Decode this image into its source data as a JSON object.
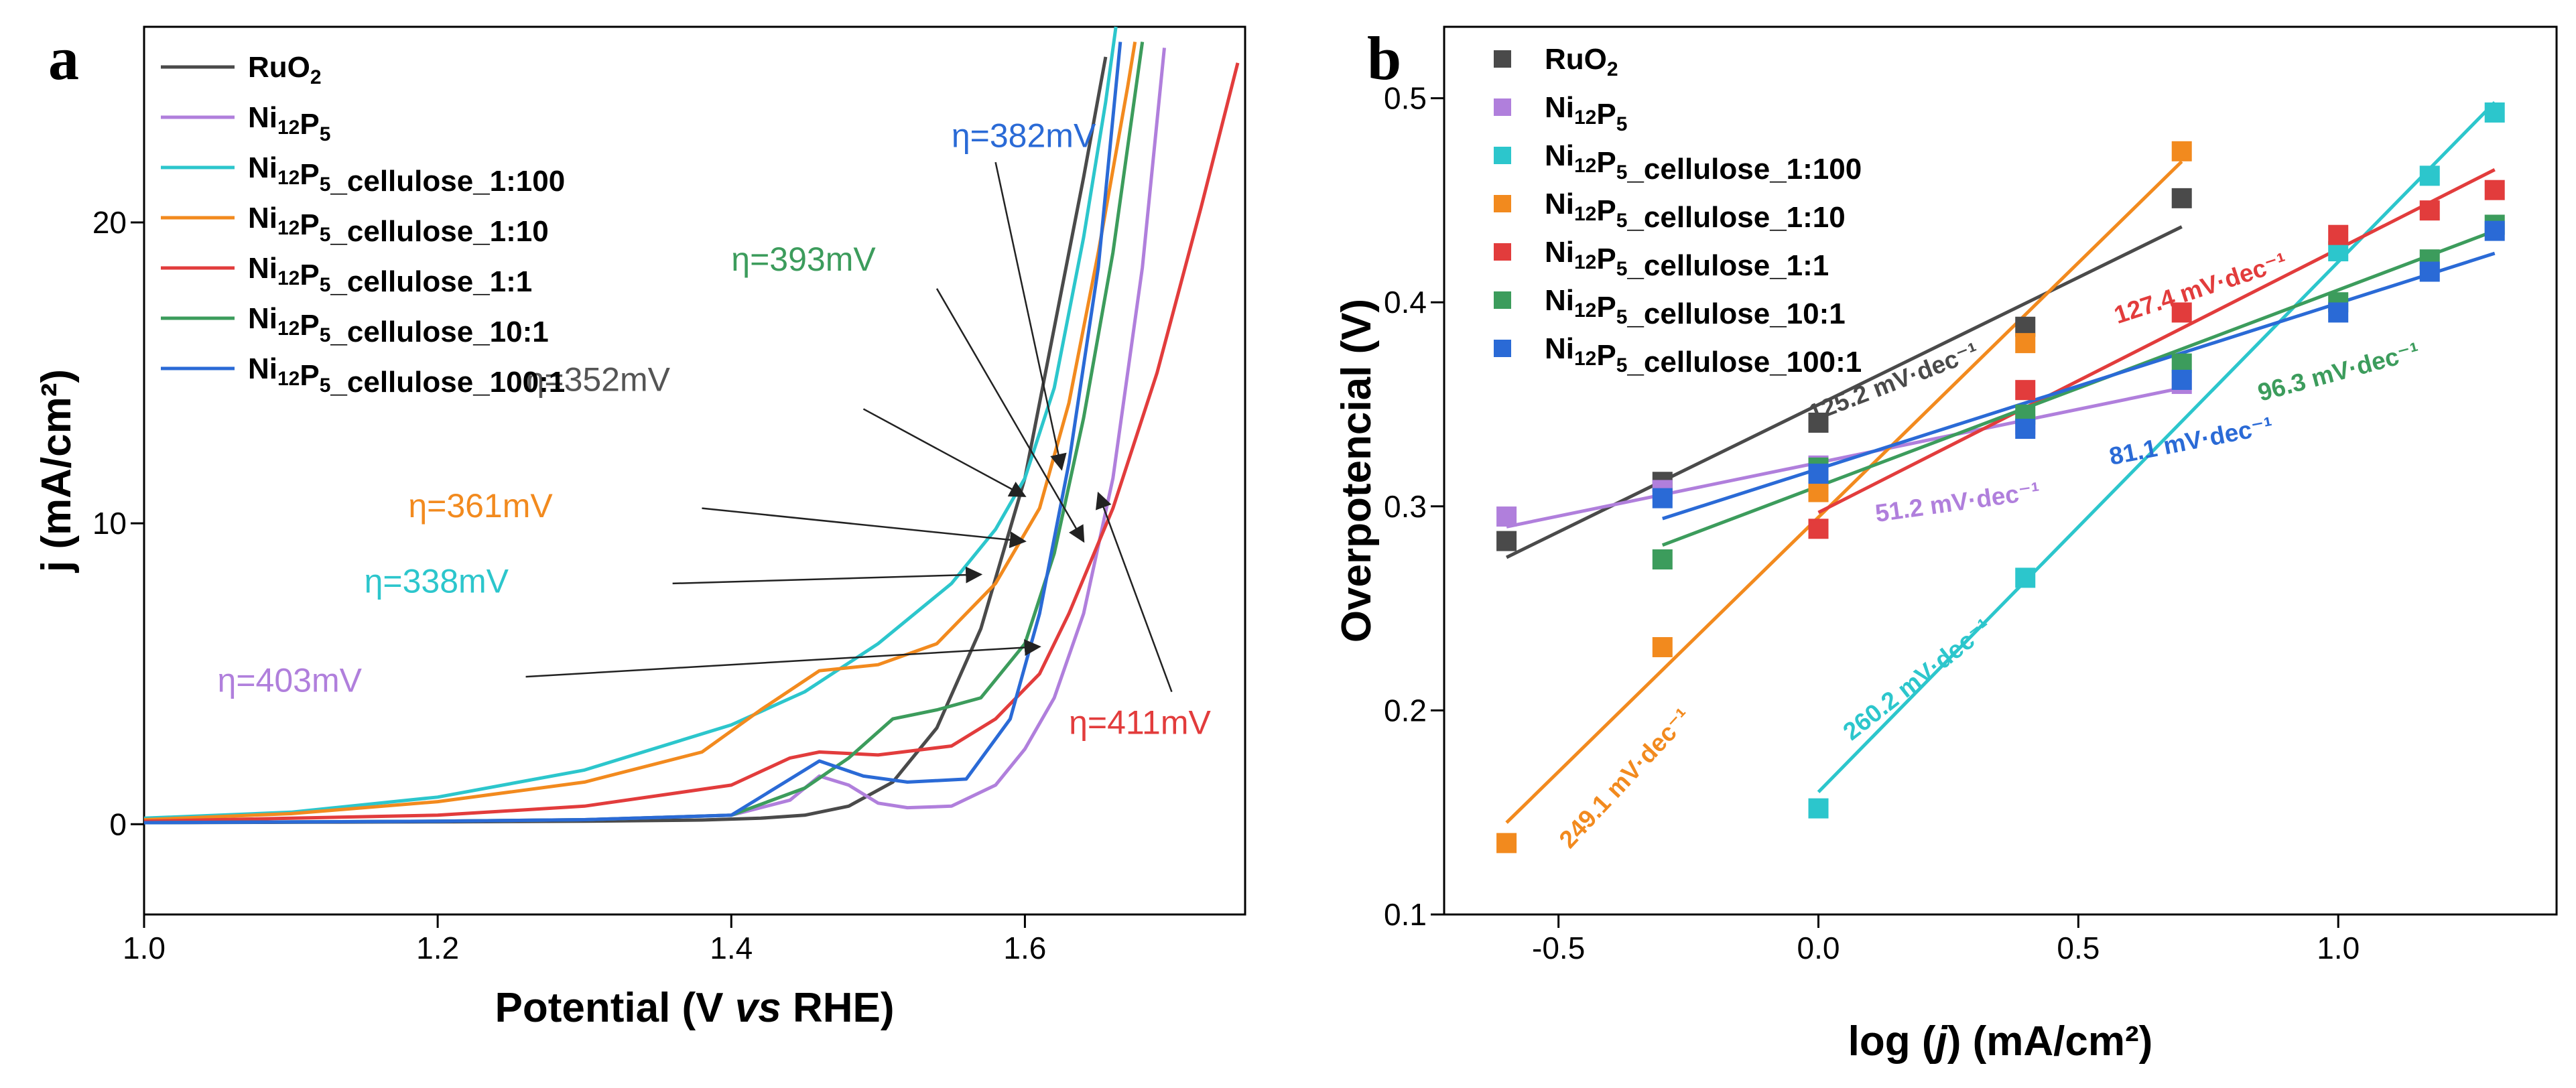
{
  "figure": {
    "panel_a_label": "a",
    "panel_b_label": "b"
  },
  "chart_data": [
    {
      "type": "line",
      "panel": "a",
      "xlabel_parts": [
        "Potential (V ",
        "vs",
        " RHE)"
      ],
      "ylabel": "j (mA/cm²)",
      "xlim": [
        1.0,
        1.75
      ],
      "ylim": [
        -3,
        26.5
      ],
      "xticks": [
        1.0,
        1.2,
        1.4,
        1.6
      ],
      "yticks": [
        0,
        10,
        20
      ],
      "legend_position": "top-left",
      "series": [
        {
          "name": "RuO₂",
          "color": "#4a4a4a",
          "points": [
            [
              1.0,
              0.05
            ],
            [
              1.2,
              0.08
            ],
            [
              1.3,
              0.1
            ],
            [
              1.38,
              0.14
            ],
            [
              1.42,
              0.2
            ],
            [
              1.45,
              0.3
            ],
            [
              1.48,
              0.6
            ],
            [
              1.51,
              1.4
            ],
            [
              1.54,
              3.2
            ],
            [
              1.57,
              6.5
            ],
            [
              1.6,
              11.5
            ],
            [
              1.62,
              16.5
            ],
            [
              1.64,
              21.5
            ],
            [
              1.655,
              25.5
            ]
          ]
        },
        {
          "name": "Ni₁₂P₅",
          "color": "#b07fdc",
          "points": [
            [
              1.0,
              0.05
            ],
            [
              1.2,
              0.1
            ],
            [
              1.3,
              0.15
            ],
            [
              1.4,
              0.3
            ],
            [
              1.44,
              0.8
            ],
            [
              1.46,
              1.6
            ],
            [
              1.48,
              1.3
            ],
            [
              1.5,
              0.7
            ],
            [
              1.52,
              0.55
            ],
            [
              1.55,
              0.6
            ],
            [
              1.58,
              1.3
            ],
            [
              1.6,
              2.5
            ],
            [
              1.62,
              4.2
            ],
            [
              1.64,
              7.0
            ],
            [
              1.66,
              11.5
            ],
            [
              1.68,
              18.5
            ],
            [
              1.695,
              25.8
            ]
          ]
        },
        {
          "name": "Ni₁₂P₅_cellulose_1:100",
          "color": "#2cc6cc",
          "points": [
            [
              1.0,
              0.2
            ],
            [
              1.1,
              0.4
            ],
            [
              1.2,
              0.9
            ],
            [
              1.3,
              1.8
            ],
            [
              1.4,
              3.3
            ],
            [
              1.45,
              4.4
            ],
            [
              1.5,
              6.0
            ],
            [
              1.55,
              8.0
            ],
            [
              1.58,
              9.8
            ],
            [
              1.6,
              11.5
            ],
            [
              1.62,
              14.5
            ],
            [
              1.64,
              19.5
            ],
            [
              1.655,
              24.0
            ],
            [
              1.662,
              26.5
            ]
          ]
        },
        {
          "name": "Ni₁₂P₅_cellulose_1:10",
          "color": "#f28a1e",
          "points": [
            [
              1.0,
              0.15
            ],
            [
              1.1,
              0.35
            ],
            [
              1.2,
              0.75
            ],
            [
              1.3,
              1.4
            ],
            [
              1.38,
              2.4
            ],
            [
              1.42,
              3.8
            ],
            [
              1.46,
              5.1
            ],
            [
              1.5,
              5.3
            ],
            [
              1.54,
              6.0
            ],
            [
              1.58,
              8.0
            ],
            [
              1.61,
              10.5
            ],
            [
              1.63,
              14.0
            ],
            [
              1.65,
              19.0
            ],
            [
              1.67,
              24.5
            ],
            [
              1.675,
              26.0
            ]
          ]
        },
        {
          "name": "Ni₁₂P₅_cellulose_1:1",
          "color": "#e23c3c",
          "points": [
            [
              1.0,
              0.1
            ],
            [
              1.2,
              0.3
            ],
            [
              1.3,
              0.6
            ],
            [
              1.4,
              1.3
            ],
            [
              1.44,
              2.2
            ],
            [
              1.46,
              2.4
            ],
            [
              1.5,
              2.3
            ],
            [
              1.55,
              2.6
            ],
            [
              1.58,
              3.5
            ],
            [
              1.61,
              5.0
            ],
            [
              1.63,
              7.0
            ],
            [
              1.66,
              10.5
            ],
            [
              1.69,
              15.0
            ],
            [
              1.72,
              20.5
            ],
            [
              1.745,
              25.3
            ]
          ]
        },
        {
          "name": "Ni₁₂P₅_cellulose_10:1",
          "color": "#3c9c5c",
          "points": [
            [
              1.0,
              0.05
            ],
            [
              1.2,
              0.1
            ],
            [
              1.3,
              0.15
            ],
            [
              1.4,
              0.3
            ],
            [
              1.45,
              1.2
            ],
            [
              1.48,
              2.2
            ],
            [
              1.51,
              3.5
            ],
            [
              1.54,
              3.8
            ],
            [
              1.57,
              4.2
            ],
            [
              1.6,
              6.0
            ],
            [
              1.62,
              9.0
            ],
            [
              1.64,
              13.5
            ],
            [
              1.66,
              19.0
            ],
            [
              1.68,
              26.0
            ]
          ]
        },
        {
          "name": "Ni₁₂P₅_cellulose_100:1",
          "color": "#2a6ad6",
          "points": [
            [
              1.0,
              0.05
            ],
            [
              1.2,
              0.1
            ],
            [
              1.3,
              0.15
            ],
            [
              1.4,
              0.3
            ],
            [
              1.44,
              1.5
            ],
            [
              1.46,
              2.1
            ],
            [
              1.49,
              1.6
            ],
            [
              1.52,
              1.4
            ],
            [
              1.56,
              1.5
            ],
            [
              1.59,
              3.5
            ],
            [
              1.61,
              7.0
            ],
            [
              1.63,
              12.0
            ],
            [
              1.65,
              18.5
            ],
            [
              1.665,
              26.0
            ]
          ]
        }
      ],
      "annotations": [
        {
          "text": "η=382mV",
          "color": "#2a6ad6",
          "at": [
            1.55,
            22.5
          ],
          "arrow_from": [
            1.58,
            22.0
          ],
          "arrow_to": [
            1.625,
            11.8
          ]
        },
        {
          "text": "η=393mV",
          "color": "#3c9c5c",
          "at": [
            1.4,
            18.4
          ],
          "arrow_from": [
            1.54,
            17.8
          ],
          "arrow_to": [
            1.64,
            9.4
          ]
        },
        {
          "text": "η=352mV",
          "color": "#555555",
          "at": [
            1.26,
            14.4
          ],
          "arrow_from": [
            1.49,
            13.8
          ],
          "arrow_to": [
            1.6,
            10.9
          ]
        },
        {
          "text": "η=361mV",
          "color": "#f28a1e",
          "at": [
            1.18,
            10.2
          ],
          "arrow_from": [
            1.38,
            10.5
          ],
          "arrow_to": [
            1.6,
            9.4
          ]
        },
        {
          "text": "η=338mV",
          "color": "#2cc6cc",
          "at": [
            1.15,
            7.7
          ],
          "arrow_from": [
            1.36,
            8.0
          ],
          "arrow_to": [
            1.57,
            8.3
          ]
        },
        {
          "text": "η=403mV",
          "color": "#b07fdc",
          "at": [
            1.05,
            4.4
          ],
          "arrow_from": [
            1.26,
            4.9
          ],
          "arrow_to": [
            1.61,
            5.9
          ]
        },
        {
          "text": "η=411mV",
          "color": "#e23c3c",
          "at": [
            1.63,
            3.0
          ],
          "arrow_from": [
            1.7,
            4.4
          ],
          "arrow_to": [
            1.65,
            11.0
          ]
        }
      ]
    },
    {
      "type": "scatter",
      "panel": "b",
      "xlabel_parts": [
        "log (",
        "j",
        ") (mA/cm²)"
      ],
      "ylabel": "Overpotencial (V)",
      "xlim": [
        -0.72,
        1.42
      ],
      "ylim": [
        0.1,
        0.535
      ],
      "xticks": [
        -0.5,
        0.0,
        0.5,
        1.0
      ],
      "yticks": [
        0.1,
        0.2,
        0.3,
        0.4,
        0.5
      ],
      "legend_position": "top-left",
      "series": [
        {
          "name": "RuO₂",
          "color": "#4a4a4a",
          "x": [
            -0.6,
            -0.3,
            0.0,
            0.398,
            0.699
          ],
          "y": [
            0.283,
            0.312,
            0.341,
            0.388,
            0.451
          ],
          "fit": [
            [
              -0.6,
              0.275
            ],
            [
              0.699,
              0.437
            ]
          ],
          "slope_label": "125.2 mV·dec⁻¹",
          "slope_at": [
            0.15,
            0.357
          ],
          "slope_angle": -21
        },
        {
          "name": "Ni₁₂P₅",
          "color": "#b07fdc",
          "x": [
            -0.6,
            -0.3,
            0.0,
            0.398,
            0.699
          ],
          "y": [
            0.295,
            0.308,
            0.32,
            0.34,
            0.36
          ],
          "fit": [
            [
              -0.6,
              0.29
            ],
            [
              0.699,
              0.358
            ]
          ],
          "slope_label": "51.2 mV·dec⁻¹",
          "slope_at": [
            0.27,
            0.298
          ],
          "slope_angle": -8
        },
        {
          "name": "Ni₁₂P₅_cellulose_1:100",
          "color": "#2cc6cc",
          "x": [
            0.0,
            0.398,
            1.0,
            1.176,
            1.301
          ],
          "y": [
            0.152,
            0.265,
            0.425,
            0.462,
            0.493
          ],
          "fit": [
            [
              0.0,
              0.16
            ],
            [
              1.301,
              0.498
            ]
          ],
          "slope_label": "260.2 mV·dec⁻¹",
          "slope_at": [
            0.2,
            0.212
          ],
          "slope_angle": -38
        },
        {
          "name": "Ni₁₂P₅_cellulose_1:10",
          "color": "#f28a1e",
          "x": [
            -0.6,
            -0.3,
            0.0,
            0.398,
            0.699
          ],
          "y": [
            0.135,
            0.231,
            0.307,
            0.38,
            0.474
          ],
          "fit": [
            [
              -0.6,
              0.145
            ],
            [
              0.699,
              0.469
            ]
          ],
          "slope_label": "249.1 mV·dec⁻¹",
          "slope_at": [
            -0.36,
            0.164
          ],
          "slope_angle": -47
        },
        {
          "name": "Ni₁₂P₅_cellulose_1:1",
          "color": "#e23c3c",
          "x": [
            0.0,
            0.398,
            0.699,
            1.0,
            1.176,
            1.301
          ],
          "y": [
            0.289,
            0.357,
            0.395,
            0.433,
            0.445,
            0.455
          ],
          "fit": [
            [
              0.0,
              0.297
            ],
            [
              1.301,
              0.465
            ]
          ],
          "slope_label": "127.4 mV·dec⁻¹",
          "slope_at": [
            0.74,
            0.403
          ],
          "slope_angle": -18
        },
        {
          "name": "Ni₁₂P₅_cellulose_10:1",
          "color": "#3c9c5c",
          "x": [
            -0.3,
            0.0,
            0.398,
            0.699,
            1.0,
            1.176,
            1.301
          ],
          "y": [
            0.274,
            0.319,
            0.345,
            0.37,
            0.4,
            0.421,
            0.438
          ],
          "fit": [
            [
              -0.3,
              0.281
            ],
            [
              1.301,
              0.435
            ]
          ],
          "slope_label": "96.3 mV·dec⁻¹",
          "slope_at": [
            1.005,
            0.362
          ],
          "slope_angle": -15
        },
        {
          "name": "Ni₁₂P₅_cellulose_100:1",
          "color": "#2a6ad6",
          "x": [
            -0.3,
            0.0,
            0.398,
            0.699,
            1.0,
            1.176,
            1.301
          ],
          "y": [
            0.304,
            0.316,
            0.338,
            0.362,
            0.395,
            0.415,
            0.435
          ],
          "fit": [
            [
              -0.3,
              0.294
            ],
            [
              1.301,
              0.424
            ]
          ],
          "slope_label": "81.1 mV·dec⁻¹",
          "slope_at": [
            0.72,
            0.328
          ],
          "slope_angle": -11
        }
      ]
    }
  ]
}
